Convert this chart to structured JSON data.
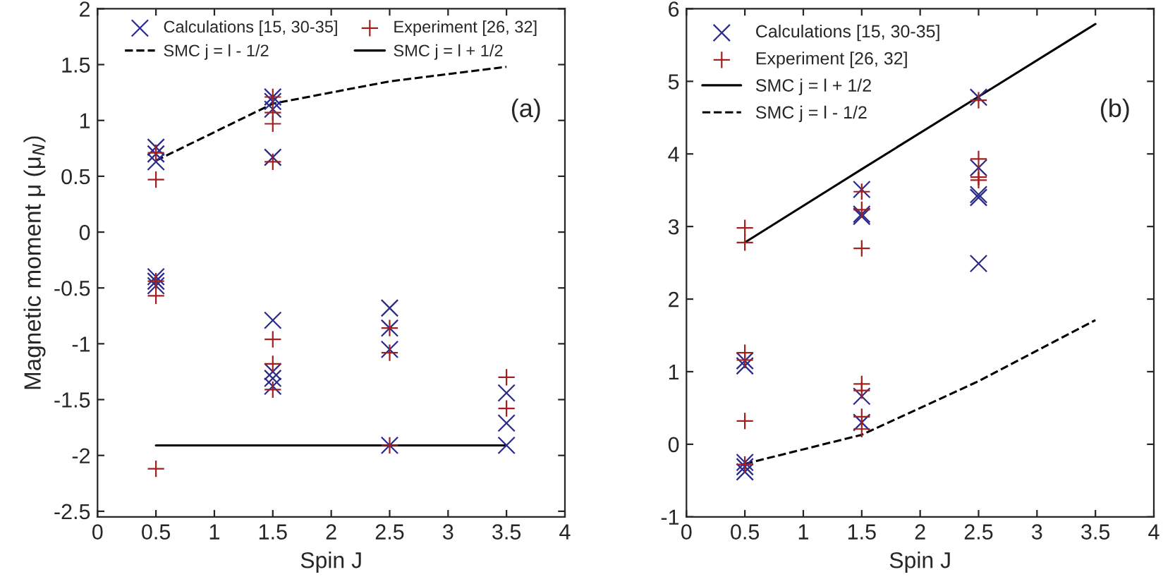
{
  "chart_data": [
    {
      "type": "scatter",
      "xlabel": "Spin J",
      "ylabel": "Magnetic moment μ (μ$_{N}$)",
      "annotations": [
        "(a)"
      ],
      "xlim": [
        0,
        4
      ],
      "ylim": [
        -2.55,
        2
      ],
      "xticks": [
        0,
        0.5,
        1,
        1.5,
        2,
        2.5,
        3,
        3.5,
        4
      ],
      "yticks": [
        -2.5,
        -2,
        -1.5,
        -1,
        -0.5,
        0,
        0.5,
        1,
        1.5,
        2
      ],
      "grid": false,
      "legend": "top",
      "series": [
        {
          "name": "Calculations [15, 30-35]",
          "color": "#2a2a8a",
          "marker": "cross",
          "x": [
            0.5,
            0.5,
            0.5,
            0.5,
            0.5,
            0.5,
            1.5,
            1.5,
            1.5,
            1.5,
            1.5,
            1.5,
            1.5,
            1.5,
            2.5,
            2.5,
            2.5,
            2.5,
            3.5,
            3.5,
            3.5
          ],
          "values": [
            0.76,
            0.7,
            0.63,
            -0.4,
            -0.44,
            -0.48,
            1.21,
            1.17,
            1.1,
            0.67,
            -0.79,
            -1.25,
            -1.31,
            -1.38,
            -0.68,
            -0.86,
            -1.05,
            -1.91,
            -1.44,
            -1.71,
            -1.91
          ]
        },
        {
          "name": "Experiment [26, 32]",
          "color": "#a02020",
          "marker": "plus",
          "x": [
            0.5,
            0.5,
            0.5,
            0.5,
            0.5,
            1.5,
            1.5,
            1.5,
            1.5,
            1.5,
            1.5,
            1.5,
            2.5,
            2.5,
            2.5,
            3.5,
            3.5
          ],
          "values": [
            0.71,
            0.47,
            -0.44,
            -0.57,
            -2.12,
            1.21,
            1.07,
            0.97,
            0.63,
            -0.96,
            -1.18,
            -1.41,
            -0.86,
            -1.08,
            -1.91,
            -1.3,
            -1.58
          ]
        },
        {
          "name": "SMC j = l - 1/2",
          "type": "line",
          "line_style": "dashed",
          "color": "#000000",
          "x": [
            0.5,
            1.5,
            2.5,
            3.5
          ],
          "values": [
            0.64,
            1.15,
            1.35,
            1.48
          ]
        },
        {
          "name": "SMC j = l + 1/2",
          "type": "line",
          "line_style": "solid",
          "color": "#000000",
          "x": [
            0.5,
            3.5
          ],
          "values": [
            -1.91,
            -1.91
          ]
        }
      ]
    },
    {
      "type": "scatter",
      "xlabel": "Spin J",
      "annotations": [
        "(b)"
      ],
      "xlim": [
        0,
        4
      ],
      "ylim": [
        -1,
        6
      ],
      "xticks": [
        0,
        0.5,
        1,
        1.5,
        2,
        2.5,
        3,
        3.5,
        4
      ],
      "yticks": [
        -1,
        0,
        1,
        2,
        3,
        4,
        5,
        6
      ],
      "grid": false,
      "legend": "top left",
      "series": [
        {
          "name": "Calculations [15, 30-35]",
          "color": "#2a2a8a",
          "marker": "cross",
          "x": [
            0.5,
            0.5,
            0.5,
            0.5,
            0.5,
            1.5,
            1.5,
            1.5,
            1.5,
            1.5,
            2.5,
            2.5,
            2.5,
            2.5,
            2.5
          ],
          "values": [
            1.15,
            1.08,
            -0.25,
            -0.31,
            -0.38,
            3.51,
            3.17,
            3.14,
            0.66,
            0.3,
            4.78,
            3.81,
            3.44,
            3.4,
            2.49
          ]
        },
        {
          "name": "Experiment [26, 32]",
          "color": "#a02020",
          "marker": "plus",
          "x": [
            0.5,
            0.5,
            0.5,
            0.5,
            0.5,
            0.5,
            1.5,
            1.5,
            1.5,
            1.5,
            1.5,
            1.5,
            1.5,
            2.5,
            2.5,
            2.5,
            2.5
          ],
          "values": [
            2.98,
            2.78,
            1.26,
            1.16,
            0.32,
            -0.28,
            3.48,
            3.23,
            2.7,
            0.83,
            0.74,
            0.38,
            0.21,
            4.74,
            3.93,
            3.68,
            3.64
          ]
        },
        {
          "name": "SMC j = l + 1/2",
          "type": "line",
          "line_style": "solid",
          "color": "#000000",
          "x": [
            0.5,
            1.5,
            2.5,
            3.5
          ],
          "values": [
            2.78,
            3.79,
            4.79,
            5.79
          ]
        },
        {
          "name": "SMC j = l - 1/2",
          "type": "line",
          "line_style": "dashed",
          "color": "#000000",
          "x": [
            0.5,
            1.5,
            2.5,
            3.5
          ],
          "values": [
            -0.27,
            0.13,
            0.87,
            1.71
          ]
        }
      ]
    }
  ]
}
